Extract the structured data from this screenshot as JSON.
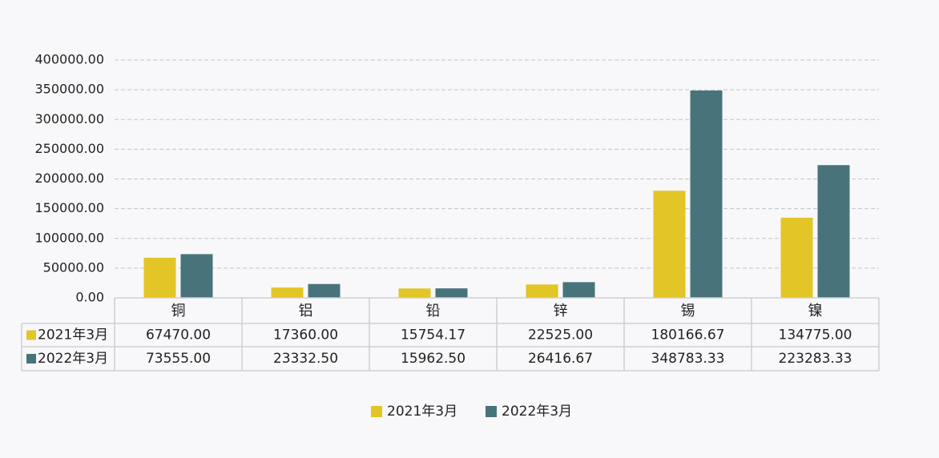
{
  "chart_data": {
    "type": "bar",
    "categories": [
      "铜",
      "铝",
      "铅",
      "锌",
      "锡",
      "镍"
    ],
    "series": [
      {
        "name": "2021年3月",
        "color": "#e2c526",
        "values": [
          67470.0,
          17360.0,
          15754.17,
          22525.0,
          180166.67,
          134775.0
        ],
        "labels": [
          "67470.00",
          "17360.00",
          "15754.17",
          "22525.00",
          "180166.67",
          "134775.00"
        ]
      },
      {
        "name": "2022年3月",
        "color": "#48737a",
        "values": [
          73555.0,
          23332.5,
          15962.5,
          26416.67,
          348783.33,
          223283.33
        ],
        "labels": [
          "73555.00",
          "23332.50",
          "15962.50",
          "26416.67",
          "348783.33",
          "223283.33"
        ]
      }
    ],
    "ylim": [
      0,
      400000
    ],
    "yticks": [
      "0.00",
      "50000.00",
      "100000.00",
      "150000.00",
      "200000.00",
      "250000.00",
      "300000.00",
      "350000.00",
      "400000.00"
    ],
    "grid": true,
    "legend": "bottom",
    "data_table": true
  }
}
